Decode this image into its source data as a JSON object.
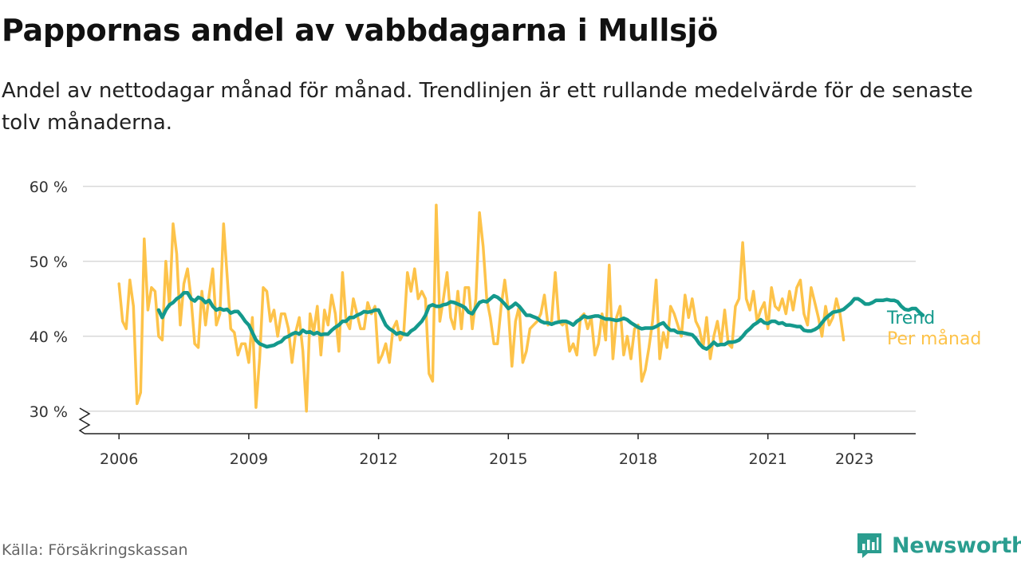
{
  "header": {
    "title": "Pappornas andel av vabbdagarna i Mullsjö",
    "subtitle": "Andel av nettodagar månad för månad. Trendlinjen är ett rullande medelvärde för de senaste tolv månaderna."
  },
  "footer": {
    "source": "Källa: Försäkringskassan",
    "brand": "Newsworthy"
  },
  "colors": {
    "monthly": "#FDC34A",
    "trend": "#14998C",
    "grid": "#D9D9D9",
    "axis": "#222222",
    "brand": "#2A9D8F"
  },
  "chart_data": {
    "type": "line",
    "x_type": "date (year-month)",
    "ylim": [
      27,
      62
    ],
    "xlim": [
      "2005-03",
      "2024-06"
    ],
    "y_ticks": [
      30,
      40,
      50,
      60
    ],
    "y_tick_labels": [
      "30 %",
      "40 %",
      "50 %",
      "60 %"
    ],
    "x_tick_labels": [
      "2006",
      "2009",
      "2012",
      "2015",
      "2018",
      "2021",
      "2023"
    ],
    "axis_break": true,
    "grid": "horizontal",
    "legend": "inline labels at line ends (right)",
    "series": [
      {
        "name": "Per månad",
        "start": "2006-01",
        "step": "month",
        "values": [
          47,
          42,
          41,
          47.5,
          44,
          31,
          32.5,
          53,
          43.5,
          46.5,
          46,
          40,
          39.5,
          50,
          44,
          55,
          51,
          41.5,
          47,
          49,
          45,
          39,
          38.5,
          46,
          41.5,
          45.5,
          49,
          41.5,
          43,
          55,
          48,
          41,
          40.5,
          37.5,
          39,
          39,
          36.5,
          42.5,
          30.5,
          37,
          46.5,
          46,
          42,
          43.5,
          40,
          43,
          43,
          41,
          36.5,
          40.5,
          42.5,
          38,
          30,
          43,
          40.5,
          44,
          37.5,
          43.5,
          41.5,
          45.5,
          43,
          38,
          48.5,
          42,
          41,
          45,
          43,
          41,
          41,
          44.5,
          43,
          44,
          36.5,
          37.5,
          39,
          36.5,
          41,
          42,
          39.5,
          40.5,
          48.5,
          46,
          49,
          45,
          46,
          45,
          35,
          34,
          57.5,
          42,
          45,
          48.5,
          42.5,
          41,
          46,
          41,
          46.5,
          46.5,
          41,
          45,
          56.5,
          52,
          45,
          42.5,
          39,
          39,
          44,
          47.5,
          43.5,
          36,
          42,
          44,
          36.5,
          38,
          41,
          41.5,
          42,
          43,
          45.5,
          41.5,
          42,
          48.5,
          42,
          41.5,
          42,
          38,
          39,
          37.5,
          42.5,
          43,
          41,
          42.5,
          37.5,
          39,
          43,
          39.5,
          49.5,
          37,
          42.5,
          44,
          37.5,
          40,
          37,
          41,
          41.5,
          34,
          35.5,
          38.5,
          42,
          47.5,
          37,
          40.5,
          38.5,
          44,
          43,
          41.5,
          40,
          45.5,
          42.5,
          45,
          42,
          41,
          38.5,
          42.5,
          37,
          40,
          42,
          39,
          43.5,
          39,
          38.5,
          44,
          45,
          52.5,
          45,
          43.5,
          46,
          42,
          43.5,
          44.5,
          41,
          46.5,
          44,
          43.5,
          45,
          43,
          46,
          43.5,
          46.5,
          47.5,
          43,
          41.5,
          46.5,
          44.5,
          42.5,
          40,
          44,
          41.5,
          42.5,
          45,
          43,
          39.5
        ]
      },
      {
        "name": "Trend",
        "start": "2006-12",
        "step": "month",
        "values": [
          43.5,
          42.5,
          43.5,
          44.2,
          44.5,
          45,
          45.3,
          45.8,
          45.8,
          45,
          44.7,
          45.2,
          45,
          44.5,
          44.8,
          44,
          43.5,
          43.7,
          43.5,
          43.6,
          43.1,
          43.3,
          43.3,
          42.7,
          42,
          41.5,
          40.5,
          39.5,
          39,
          38.8,
          38.6,
          38.7,
          38.8,
          39.1,
          39.3,
          39.8,
          40,
          40.3,
          40.5,
          40.3,
          40.8,
          40.5,
          40.6,
          40.3,
          40.5,
          40.2,
          40.3,
          40.3,
          40.8,
          41.2,
          41.5,
          42,
          42,
          42.5,
          42.5,
          42.8,
          43,
          43.3,
          43.2,
          43.3,
          43.5,
          43.5,
          42.5,
          41.5,
          41,
          40.7,
          40.3,
          40.5,
          40.3,
          40.2,
          40.7,
          41,
          41.5,
          42,
          42.8,
          44,
          44.2,
          44,
          44,
          44.2,
          44.3,
          44.6,
          44.5,
          44.3,
          44.1,
          43.8,
          43.2,
          43,
          43.8,
          44.5,
          44.7,
          44.6,
          45,
          45.4,
          45.2,
          44.8,
          44.3,
          43.7,
          44,
          44.4,
          44,
          43.4,
          42.8,
          42.8,
          42.6,
          42.4,
          42,
          41.8,
          41.8,
          41.6,
          41.8,
          41.9,
          42,
          42,
          41.8,
          41.5,
          42,
          42.3,
          42.7,
          42.5,
          42.6,
          42.7,
          42.7,
          42.5,
          42.3,
          42.3,
          42.2,
          42.1,
          42.2,
          42.4,
          42.2,
          41.8,
          41.5,
          41.2,
          41,
          41.1,
          41.1,
          41.1,
          41.3,
          41.6,
          41.8,
          41.2,
          40.8,
          40.8,
          40.5,
          40.5,
          40.4,
          40.3,
          40.2,
          39.7,
          39,
          38.5,
          38.3,
          38.7,
          39.2,
          38.8,
          38.9,
          38.9,
          39.2,
          39.2,
          39.3,
          39.5,
          40,
          40.6,
          41,
          41.5,
          41.8,
          42.2,
          41.8,
          41.7,
          42,
          42,
          41.7,
          41.8,
          41.5,
          41.5,
          41.4,
          41.3,
          41.3,
          40.8,
          40.7,
          40.7,
          40.9,
          41.2,
          41.8,
          42.4,
          42.8,
          43.2,
          43.3,
          43.4,
          43.6,
          44,
          44.4,
          45,
          45,
          44.7,
          44.3,
          44.3,
          44.5,
          44.8,
          44.8,
          44.8,
          44.9,
          44.8,
          44.8,
          44.6,
          44,
          43.6,
          43.5,
          43.7,
          43.7,
          43.2,
          42.8
        ]
      }
    ]
  }
}
